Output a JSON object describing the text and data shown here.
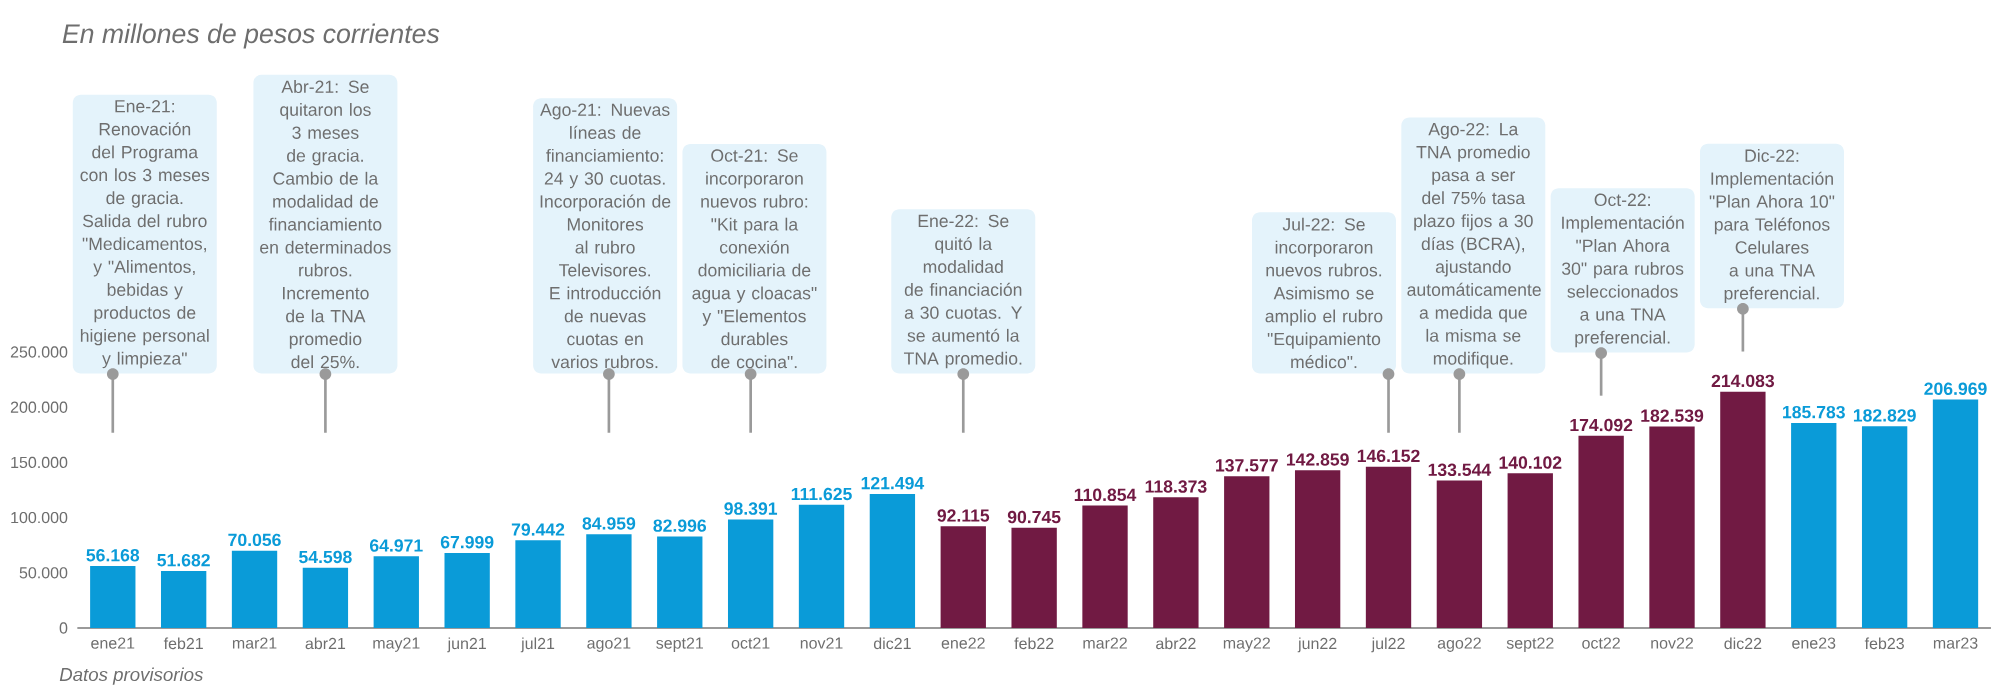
{
  "chart_data": {
    "type": "bar",
    "title": "En millones de pesos corrientes",
    "categories": [
      "ene21",
      "feb21",
      "mar21",
      "abr21",
      "may21",
      "jun21",
      "jul21",
      "ago21",
      "sept21",
      "oct21",
      "nov21",
      "dic21",
      "ene22",
      "feb22",
      "mar22",
      "abr22",
      "may22",
      "jun22",
      "jul22",
      "ago22",
      "sept22",
      "oct22",
      "nov22",
      "dic22",
      "ene23",
      "feb23",
      "mar23"
    ],
    "values": [
      56168,
      51682,
      70056,
      54598,
      64971,
      67999,
      79442,
      84959,
      82996,
      98391,
      111625,
      121494,
      92115,
      90745,
      110854,
      118373,
      137577,
      142859,
      146152,
      133544,
      140102,
      174092,
      182539,
      214083,
      185783,
      182829,
      206969
    ],
    "value_labels": [
      "56.168",
      "51.682",
      "70.056",
      "54.598",
      "64.971",
      "67.999",
      "79.442",
      "84.959",
      "82.996",
      "98.391",
      "111.625",
      "121.494",
      "92.115",
      "90.745",
      "110.854",
      "118.373",
      "137.577",
      "142.859",
      "146.152",
      "133.544",
      "140.102",
      "174.092",
      "182.539",
      "214.083",
      "185.783",
      "182.829",
      "206.969"
    ],
    "colors": [
      "#0a9bd8",
      "#0a9bd8",
      "#0a9bd8",
      "#0a9bd8",
      "#0a9bd8",
      "#0a9bd8",
      "#0a9bd8",
      "#0a9bd8",
      "#0a9bd8",
      "#0a9bd8",
      "#0a9bd8",
      "#0a9bd8",
      "#711a43",
      "#711a43",
      "#711a43",
      "#711a43",
      "#711a43",
      "#711a43",
      "#711a43",
      "#711a43",
      "#711a43",
      "#711a43",
      "#711a43",
      "#711a43",
      "#0a9bd8",
      "#0a9bd8",
      "#0a9bd8"
    ],
    "ylim": [
      0,
      250000
    ],
    "yticks": [
      {
        "value": 0,
        "label": "0"
      },
      {
        "value": 50000,
        "label": "50.000"
      },
      {
        "value": 100000,
        "label": "100.000"
      },
      {
        "value": 150000,
        "label": "150.000"
      },
      {
        "value": 200000,
        "label": "200.000"
      },
      {
        "value": 250000,
        "label": "250.000"
      }
    ],
    "annotations": [
      "Ene-21: Renovación del Programa con los 3 meses de gracia. Salida del rubro \"Medicamentos, y \"Alimentos, bebidas y productos de higiene personal y limpieza\"",
      "Abr-21: Se quitaron los 3 meses de gracia. Cambio de la modalidad de financiamiento en determinados rubros. Incremento de la TNA promedio del 25%.",
      "Ago-21: Nuevas líneas de financiamiento: 24 y 30 cuotas. Incorporación de Monitores al rubro Televisores. E introducción de nuevas cuotas en varios rubros.",
      "Oct-21: Se incorporaron nuevos rubro: \"Kit para la conexión domiciliaria de agua y cloacas\" y \"Elementos durables de cocina\".",
      "Ene-22: Se quitó la modalidad de financiación a 30 cuotas. Y se aumentó la TNA promedio.",
      "Jul-22: Se incorporaron nuevos rubros. Asimismo se amplio el rubro \"Equipamiento médico\".",
      "Ago-22: La TNA promedio pasa a ser del 75% tasa plazo fijos a 30 días (BCRA), ajustando automáticamente a medida que la misma se modifique.",
      "Oct-22: Implementación \"Plan Ahora 30\" para rubros seleccionados a una TNA preferencial.",
      "Dic-22: Implementación \"Plan Ahora 10\" para Teléfonos Celulares a una TNA preferencial.",
      "Datos provisorios"
    ]
  }
}
